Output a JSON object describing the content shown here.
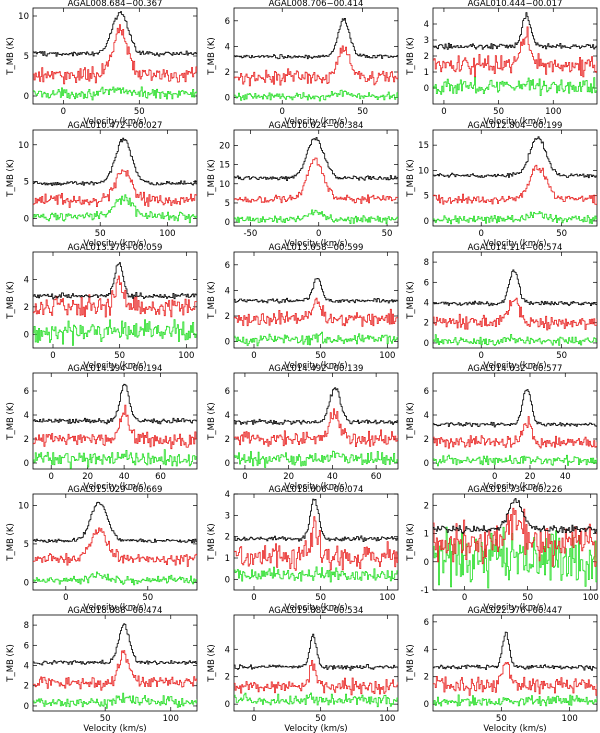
{
  "figure": {
    "xlabel": "Velocity (km/s)",
    "ylabel": "T_MB (K)",
    "colors": {
      "black": "#000000",
      "red": "#e8201f",
      "green": "#22dd22"
    }
  },
  "chart_data": [
    {
      "type": "line",
      "title": "AGAL008.684−00.367",
      "xlim": [
        -20,
        88
      ],
      "ylim": [
        -1,
        11
      ],
      "xticks": [
        0,
        50
      ],
      "yticks": [
        0,
        5,
        10
      ],
      "peak_velocity": 37,
      "width": 5,
      "offsets": {
        "black": 5.3,
        "red": 2.6,
        "green": 0.3
      },
      "peaks": {
        "black": 5.2,
        "red": 5.4,
        "green": 0.5
      },
      "noise": {
        "black": 0.15,
        "red": 0.45,
        "green": 0.3
      }
    },
    {
      "type": "line",
      "title": "AGAL008.706−00.414",
      "xlim": [
        -30,
        72
      ],
      "ylim": [
        -0.5,
        7
      ],
      "xticks": [
        0,
        50
      ],
      "yticks": [
        0,
        2,
        4,
        6
      ],
      "peak_velocity": 38,
      "width": 3.5,
      "offsets": {
        "black": 3.2,
        "red": 1.6,
        "green": 0.1
      },
      "peaks": {
        "black": 2.9,
        "red": 2.3,
        "green": 0.3
      },
      "noise": {
        "black": 0.08,
        "red": 0.25,
        "green": 0.15
      }
    },
    {
      "type": "line",
      "title": "AGAL010.444−00.017",
      "xlim": [
        -10,
        140
      ],
      "ylim": [
        -1,
        5
      ],
      "xticks": [
        0,
        50,
        100
      ],
      "yticks": [
        0,
        1,
        2,
        3,
        4
      ],
      "peak_velocity": 75,
      "width": 4,
      "offsets": {
        "black": 2.6,
        "red": 1.4,
        "green": 0.1
      },
      "peaks": {
        "black": 2.0,
        "red": 2.0,
        "green": 0.3
      },
      "noise": {
        "black": 0.08,
        "red": 0.3,
        "green": 0.25
      }
    },
    {
      "type": "line",
      "title": "AGAL010.472+00.027",
      "xlim": [
        0,
        122
      ],
      "ylim": [
        -1,
        12
      ],
      "xticks": [
        50,
        100
      ],
      "yticks": [
        0,
        5,
        10
      ],
      "peak_velocity": 67,
      "width": 6,
      "offsets": {
        "black": 4.8,
        "red": 2.5,
        "green": 0.3
      },
      "peaks": {
        "black": 6.0,
        "red": 4.0,
        "green": 2.5
      },
      "noise": {
        "black": 0.15,
        "red": 0.4,
        "green": 0.3
      }
    },
    {
      "type": "line",
      "title": "AGAL010.624−00.384",
      "xlim": [
        -62,
        58
      ],
      "ylim": [
        -1,
        24
      ],
      "xticks": [
        -50,
        0,
        50
      ],
      "yticks": [
        0,
        5,
        10,
        15,
        20
      ],
      "peak_velocity": -3,
      "width": 6,
      "offsets": {
        "black": 11.5,
        "red": 6.0,
        "green": 0.7
      },
      "peaks": {
        "black": 10.5,
        "red": 10.0,
        "green": 2.0
      },
      "noise": {
        "black": 0.3,
        "red": 0.5,
        "green": 0.5
      }
    },
    {
      "type": "line",
      "title": "AGAL012.804−00.199",
      "xlim": [
        -30,
        72
      ],
      "ylim": [
        -1,
        18
      ],
      "xticks": [
        0,
        50
      ],
      "yticks": [
        0,
        5,
        10,
        15
      ],
      "peak_velocity": 35,
      "width": 5,
      "offsets": {
        "black": 9.0,
        "red": 4.3,
        "green": 0.3
      },
      "peaks": {
        "black": 7.5,
        "red": 6.5,
        "green": 1.0
      },
      "noise": {
        "black": 0.2,
        "red": 0.5,
        "green": 0.4
      }
    },
    {
      "type": "line",
      "title": "AGAL013.178+00.059",
      "xlim": [
        -15,
        108
      ],
      "ylim": [
        -1,
        6
      ],
      "xticks": [
        0,
        50,
        100
      ],
      "yticks": [
        0,
        2,
        4
      ],
      "peak_velocity": 49,
      "width": 3,
      "offsets": {
        "black": 2.8,
        "red": 2.0,
        "green": 0.2
      },
      "peaks": {
        "black": 2.4,
        "red": 1.8,
        "green": 0.2
      },
      "noise": {
        "black": 0.1,
        "red": 0.35,
        "green": 0.35
      }
    },
    {
      "type": "line",
      "title": "AGAL013.658−00.599",
      "xlim": [
        -15,
        108
      ],
      "ylim": [
        -0.5,
        7
      ],
      "xticks": [
        0,
        50,
        100
      ],
      "yticks": [
        0,
        2,
        4,
        6
      ],
      "peak_velocity": 47,
      "width": 3,
      "offsets": {
        "black": 3.2,
        "red": 1.8,
        "green": 0.2
      },
      "peaks": {
        "black": 1.8,
        "red": 1.6,
        "green": 0.2
      },
      "noise": {
        "black": 0.08,
        "red": 0.3,
        "green": 0.2
      }
    },
    {
      "type": "line",
      "title": "AGAL014.114−00.574",
      "xlim": [
        -30,
        72
      ],
      "ylim": [
        -0.5,
        9
      ],
      "xticks": [
        0,
        50
      ],
      "yticks": [
        0,
        2,
        4,
        6,
        8
      ],
      "peak_velocity": 20,
      "width": 3,
      "offsets": {
        "black": 3.9,
        "red": 2.0,
        "green": 0.2
      },
      "peaks": {
        "black": 3.2,
        "red": 2.6,
        "green": 0.2
      },
      "noise": {
        "black": 0.1,
        "red": 0.35,
        "green": 0.25
      }
    },
    {
      "type": "line",
      "title": "AGAL014.194−00.194",
      "xlim": [
        -10,
        80
      ],
      "ylim": [
        -0.5,
        7.5
      ],
      "xticks": [
        0,
        20,
        40,
        60
      ],
      "yticks": [
        0,
        2,
        4,
        6
      ],
      "peak_velocity": 40,
      "width": 2.5,
      "offsets": {
        "black": 3.5,
        "red": 1.9,
        "green": 0.3
      },
      "peaks": {
        "black": 3.0,
        "red": 2.3,
        "green": 0.3
      },
      "noise": {
        "black": 0.1,
        "red": 0.3,
        "green": 0.3
      }
    },
    {
      "type": "line",
      "title": "AGAL014.492−00.139",
      "xlim": [
        -5,
        70
      ],
      "ylim": [
        -0.5,
        7.5
      ],
      "xticks": [
        0,
        20,
        40,
        60
      ],
      "yticks": [
        0,
        2,
        4,
        6
      ],
      "peak_velocity": 41,
      "width": 2.5,
      "offsets": {
        "black": 3.4,
        "red": 2.0,
        "green": 0.3
      },
      "peaks": {
        "black": 2.8,
        "red": 2.0,
        "green": 0.3
      },
      "noise": {
        "black": 0.1,
        "red": 0.3,
        "green": 0.25
      }
    },
    {
      "type": "line",
      "title": "AGAL014.632−00.577",
      "xlim": [
        -35,
        58
      ],
      "ylim": [
        -0.5,
        7.5
      ],
      "xticks": [
        0,
        20,
        40
      ],
      "yticks": [
        0,
        2,
        4,
        6
      ],
      "peak_velocity": 18,
      "width": 2.5,
      "offsets": {
        "black": 3.2,
        "red": 1.7,
        "green": 0.2
      },
      "peaks": {
        "black": 3.0,
        "red": 1.8,
        "green": 0.2
      },
      "noise": {
        "black": 0.08,
        "red": 0.25,
        "green": 0.2
      }
    },
    {
      "type": "line",
      "title": "AGAL015.029−00.669",
      "xlim": [
        -20,
        80
      ],
      "ylim": [
        -1,
        11.5
      ],
      "xticks": [
        0,
        50
      ],
      "yticks": [
        0,
        5,
        10
      ],
      "peak_velocity": 20,
      "width": 5,
      "offsets": {
        "black": 5.4,
        "red": 3.0,
        "green": 0.3
      },
      "peaks": {
        "black": 5.0,
        "red": 3.6,
        "green": 0.6
      },
      "noise": {
        "black": 0.12,
        "red": 0.35,
        "green": 0.25
      }
    },
    {
      "type": "line",
      "title": "AGAL018.606−00.074",
      "xlim": [
        -15,
        108
      ],
      "ylim": [
        -0.5,
        4
      ],
      "xticks": [
        0,
        50,
        100
      ],
      "yticks": [
        0,
        1,
        2,
        3,
        4
      ],
      "peak_velocity": 45,
      "width": 3,
      "offsets": {
        "black": 1.9,
        "red": 1.1,
        "green": 0.2
      },
      "peaks": {
        "black": 1.9,
        "red": 1.3,
        "green": 0.1
      },
      "noise": {
        "black": 0.06,
        "red": 0.3,
        "green": 0.15
      }
    },
    {
      "type": "line",
      "title": "AGAL018.734−00.226",
      "xlim": [
        -25,
        105
      ],
      "ylim": [
        -1,
        2.4
      ],
      "xticks": [
        0,
        50,
        100
      ],
      "yticks": [
        -1,
        0,
        1,
        2
      ],
      "peak_velocity": 40,
      "width": 6,
      "offsets": {
        "black": 1.15,
        "red": 0.65,
        "green": 0.05
      },
      "peaks": {
        "black": 1.0,
        "red": 1.0,
        "green": 0.4
      },
      "noise": {
        "black": 0.06,
        "red": 0.35,
        "green": 0.5
      }
    },
    {
      "type": "line",
      "title": "AGAL018.888−00.474",
      "xlim": [
        -5,
        120
      ],
      "ylim": [
        -0.5,
        9
      ],
      "xticks": [
        50,
        100
      ],
      "yticks": [
        0,
        2,
        4,
        6,
        8
      ],
      "peak_velocity": 64,
      "width": 4,
      "offsets": {
        "black": 4.3,
        "red": 2.3,
        "green": 0.4
      },
      "peaks": {
        "black": 3.8,
        "red": 2.8,
        "green": 0.4
      },
      "noise": {
        "black": 0.1,
        "red": 0.3,
        "green": 0.25
      }
    },
    {
      "type": "line",
      "title": "AGAL019.882−00.534",
      "xlim": [
        -15,
        108
      ],
      "ylim": [
        -0.5,
        6.5
      ],
      "xticks": [
        0,
        50,
        100
      ],
      "yticks": [
        0,
        2,
        4
      ],
      "peak_velocity": 44,
      "width": 2.5,
      "offsets": {
        "black": 2.7,
        "red": 1.3,
        "green": 0.3
      },
      "peaks": {
        "black": 2.3,
        "red": 1.5,
        "green": 0.2
      },
      "noise": {
        "black": 0.08,
        "red": 0.25,
        "green": 0.2
      }
    },
    {
      "type": "line",
      "title": "AGAL022.376+00.447",
      "xlim": [
        0,
        120
      ],
      "ylim": [
        -0.5,
        6.5
      ],
      "xticks": [
        50,
        100
      ],
      "yticks": [
        0,
        2,
        4,
        6
      ],
      "peak_velocity": 53,
      "width": 2.5,
      "offsets": {
        "black": 2.7,
        "red": 1.4,
        "green": 0.2
      },
      "peaks": {
        "black": 2.5,
        "red": 1.8,
        "green": 0.2
      },
      "noise": {
        "black": 0.08,
        "red": 0.3,
        "green": 0.2
      }
    }
  ]
}
